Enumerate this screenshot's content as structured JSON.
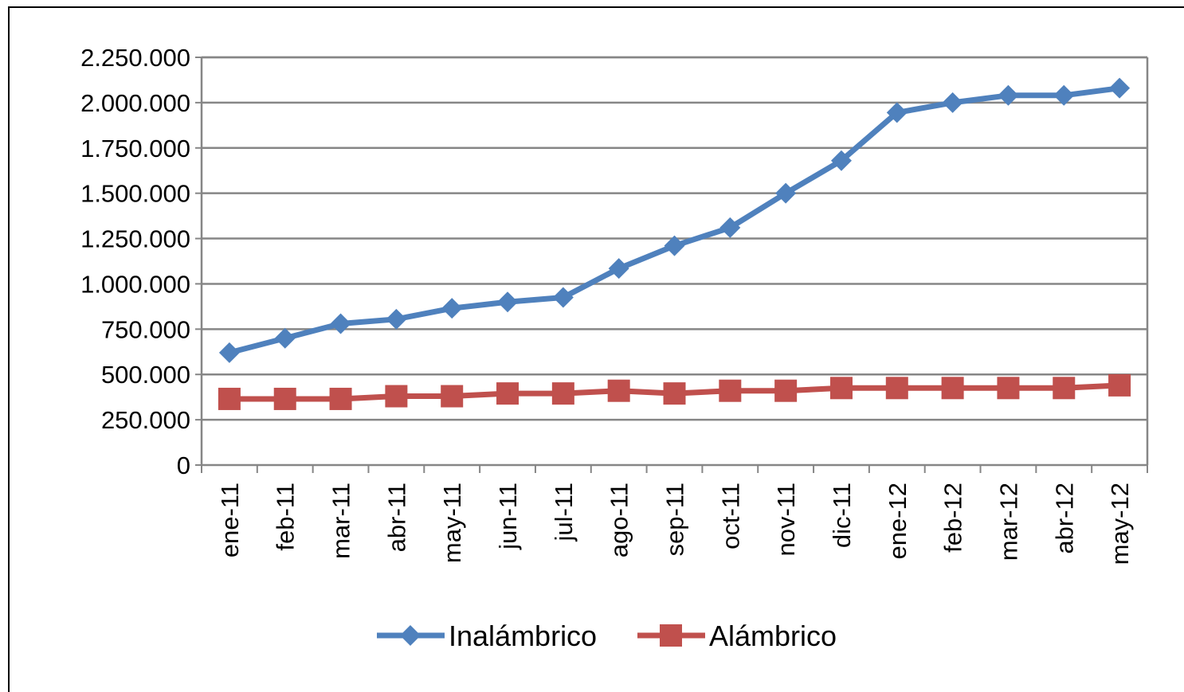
{
  "chart_data": {
    "type": "line",
    "title": "",
    "xlabel": "",
    "ylabel": "",
    "categories": [
      "ene-11",
      "feb-11",
      "mar-11",
      "abr-11",
      "may-11",
      "jun-11",
      "jul-11",
      "ago-11",
      "sep-11",
      "oct-11",
      "nov-11",
      "dic-11",
      "ene-12",
      "feb-12",
      "mar-12",
      "abr-12",
      "may-12"
    ],
    "ylim": [
      0,
      2250000
    ],
    "yticks": [
      0,
      250000,
      500000,
      750000,
      1000000,
      1250000,
      1500000,
      1750000,
      2000000,
      2250000
    ],
    "ytick_labels": [
      "0",
      "250.000",
      "500.000",
      "750.000",
      "1.000.000",
      "1.250.000",
      "1.500.000",
      "1.750.000",
      "2.000.000",
      "2.250.000"
    ],
    "grid": true,
    "legend_position": "bottom",
    "series": [
      {
        "name": "Inalámbrico",
        "color": "#4F81BD",
        "marker": "diamond",
        "values": [
          620000,
          700000,
          780000,
          805000,
          865000,
          900000,
          925000,
          1085000,
          1210000,
          1310000,
          1500000,
          1680000,
          1945000,
          2000000,
          2040000,
          2040000,
          2080000
        ]
      },
      {
        "name": "Alámbrico",
        "color": "#C0504D",
        "marker": "square",
        "values": [
          365000,
          365000,
          365000,
          380000,
          380000,
          395000,
          395000,
          410000,
          395000,
          410000,
          410000,
          425000,
          425000,
          425000,
          425000,
          425000,
          440000
        ]
      }
    ]
  }
}
